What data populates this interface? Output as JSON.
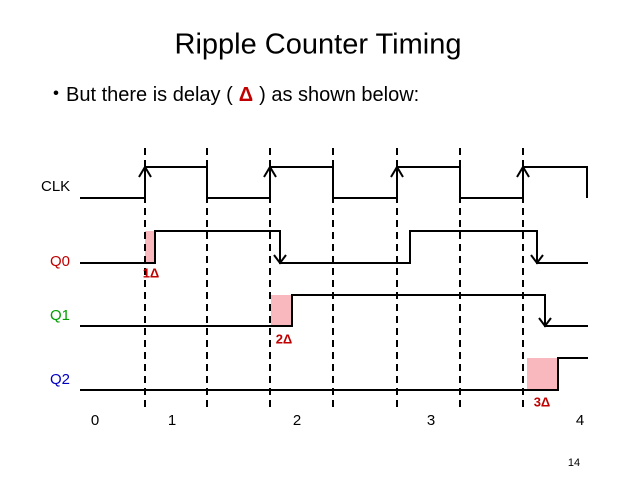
{
  "title": "Ripple Counter Timing",
  "bullet": {
    "before": "But there is delay (",
    "delta": "Δ",
    "after": ") as shown below:"
  },
  "signals": {
    "clk": "CLK",
    "q0": "Q0",
    "q1": "Q1",
    "q2": "Q2"
  },
  "delays": [
    "1Δ",
    "2Δ",
    "3Δ"
  ],
  "counts": [
    "0",
    "1",
    "2",
    "3",
    "4"
  ],
  "page_number": "14"
}
